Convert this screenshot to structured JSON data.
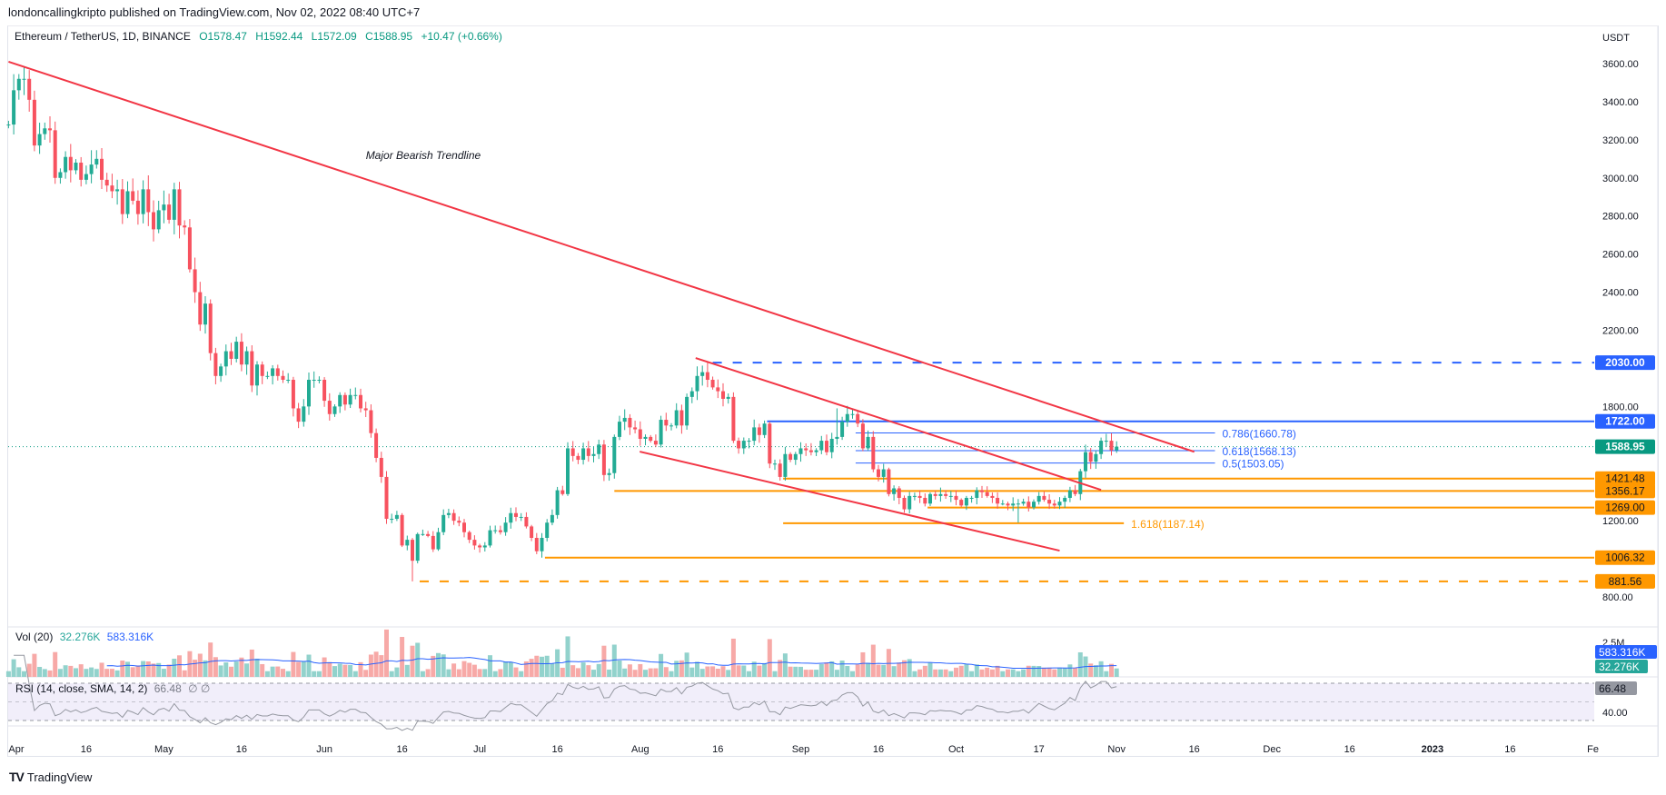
{
  "header": {
    "published": "londoncallingkripto published on TradingView.com, Nov 02, 2022 08:40 UTC+7",
    "symbol": "Ethereum / TetherUS, 1D, BINANCE",
    "open": "O1578.47",
    "high": "H1592.44",
    "low": "L1572.09",
    "close": "C1588.95",
    "change": "+10.47 (+0.66%)"
  },
  "volume_legend": {
    "label": "Vol (20)",
    "value": "32.276K",
    "ma": "583.316K"
  },
  "rsi_legend": {
    "label": "RSI (14, close, SMA, 14, 2)",
    "value": "66.48",
    "extra": "∅ ∅"
  },
  "footer": {
    "logo": "TV",
    "brand": "TradingView"
  },
  "colors": {
    "up": "#22ab94",
    "down": "#f7525f",
    "trend": "#f23645",
    "blue": "#2962ff",
    "orange": "#ff9800",
    "last": "#089981"
  },
  "chart_data": {
    "type": "candlestick",
    "title": "Ethereum / TetherUS, 1D, BINANCE",
    "currency": "USDT",
    "start_date": "2022-04-01",
    "ylim": [
      740,
      3700
    ],
    "price_ticks": [
      "3600.00",
      "3400.00",
      "3200.00",
      "3000.00",
      "2800.00",
      "2600.00",
      "2400.00",
      "2200.00",
      "1800.00",
      "1200.00",
      "800.00"
    ],
    "price_tick_values": [
      3600,
      3400,
      3200,
      3000,
      2800,
      2600,
      2400,
      2200,
      1800,
      1200,
      800
    ],
    "time_ticks": [
      {
        "label": "Apr",
        "day": 0
      },
      {
        "label": "16",
        "day": 15
      },
      {
        "label": "May",
        "day": 30
      },
      {
        "label": "16",
        "day": 45
      },
      {
        "label": "Jun",
        "day": 61
      },
      {
        "label": "16",
        "day": 76
      },
      {
        "label": "Jul",
        "day": 91
      },
      {
        "label": "16",
        "day": 106
      },
      {
        "label": "Aug",
        "day": 122
      },
      {
        "label": "16",
        "day": 137
      },
      {
        "label": "Sep",
        "day": 153
      },
      {
        "label": "16",
        "day": 168
      },
      {
        "label": "Oct",
        "day": 183
      },
      {
        "label": "17",
        "day": 199
      },
      {
        "label": "Nov",
        "day": 214
      },
      {
        "label": "16",
        "day": 229
      },
      {
        "label": "Dec",
        "day": 244
      },
      {
        "label": "16",
        "day": 259
      },
      {
        "label": "2023",
        "day": 275
      },
      {
        "label": "16",
        "day": 290
      },
      {
        "label": "Fe",
        "day": 306
      }
    ],
    "closes": [
      3280,
      3460,
      3520,
      3520,
      3410,
      3170,
      3230,
      3260,
      3250,
      3000,
      3030,
      3110,
      3040,
      3080,
      2990,
      3020,
      3070,
      3100,
      2990,
      2960,
      2930,
      2940,
      2810,
      2930,
      2880,
      2810,
      2940,
      2820,
      2730,
      2830,
      2860,
      2780,
      2940,
      2750,
      2740,
      2520,
      2400,
      2230,
      2340,
      2080,
      1960,
      2010,
      2090,
      2050,
      2140,
      2020,
      2090,
      1910,
      2020,
      1960,
      1960,
      2000,
      1960,
      1940,
      1940,
      1790,
      1720,
      1800,
      1940,
      1940,
      1940,
      1830,
      1760,
      1800,
      1860,
      1810,
      1860,
      1860,
      1790,
      1780,
      1660,
      1530,
      1430,
      1210,
      1210,
      1230,
      1070,
      1100,
      990,
      1130,
      1130,
      1120,
      1050,
      1140,
      1230,
      1240,
      1200,
      1190,
      1140,
      1100,
      1070,
      1060,
      1070,
      1150,
      1150,
      1140,
      1190,
      1240,
      1220,
      1220,
      1170,
      1110,
      1040,
      1110,
      1190,
      1230,
      1360,
      1340,
      1580,
      1540,
      1520,
      1580,
      1540,
      1550,
      1600,
      1440,
      1450,
      1640,
      1720,
      1740,
      1690,
      1680,
      1630,
      1640,
      1620,
      1600,
      1730,
      1700,
      1700,
      1780,
      1700,
      1850,
      1880,
      1960,
      1980,
      1940,
      1900,
      1880,
      1840,
      1850,
      1620,
      1580,
      1620,
      1620,
      1690,
      1650,
      1710,
      1500,
      1500,
      1430,
      1550,
      1520,
      1550,
      1580,
      1570,
      1560,
      1570,
      1620,
      1560,
      1630,
      1640,
      1720,
      1760,
      1760,
      1710,
      1580,
      1640,
      1470,
      1430,
      1470,
      1340,
      1370,
      1320,
      1260,
      1330,
      1330,
      1320,
      1290,
      1340,
      1330,
      1340,
      1330,
      1330,
      1310,
      1280,
      1320,
      1320,
      1360,
      1350,
      1330,
      1320,
      1290,
      1290,
      1280,
      1290,
      1290,
      1300,
      1270,
      1300,
      1330,
      1310,
      1290,
      1280,
      1300,
      1320,
      1360,
      1340,
      1460,
      1560,
      1510,
      1550,
      1620,
      1620,
      1570,
      1589
    ],
    "first_open": 3280,
    "wick_extremes": [
      {
        "day": 3,
        "high": 3580
      },
      {
        "day": 78,
        "low": 881.56
      },
      {
        "day": 103,
        "low": 1006.32
      },
      {
        "day": 135,
        "high": 2030
      },
      {
        "day": 195,
        "low": 1190
      },
      {
        "day": 160,
        "high": 1790
      },
      {
        "day": 213,
        "high": 1660
      }
    ],
    "last_price": "1588.95",
    "horizontal_levels": [
      {
        "price": 2030,
        "label": "2030.00",
        "color": "blue",
        "style": "dashed",
        "from_day": 136
      },
      {
        "price": 1722,
        "label": "1722.00",
        "color": "blue",
        "style": "solid",
        "from_day": 146.5
      },
      {
        "price": 1421.48,
        "label": "1421.48",
        "color": "orange",
        "style": "solid",
        "from_day": 149.6
      },
      {
        "price": 1356.17,
        "label": "1356.17",
        "color": "orange",
        "style": "solid",
        "from_day": 117
      },
      {
        "price": 1269,
        "label": "1269.00",
        "color": "orange",
        "style": "solid",
        "from_day": 177.5
      },
      {
        "price": 1006.32,
        "label": "1006.32",
        "color": "orange",
        "style": "solid",
        "from_day": 103.6
      },
      {
        "price": 881.56,
        "label": "881.56",
        "color": "orange",
        "style": "dashed",
        "from_day": 79.4
      }
    ],
    "fib_levels": [
      {
        "price": 1660.78,
        "label": "0.786(1660.78)",
        "from_day": 163.6,
        "to_day": 233,
        "color": "blue"
      },
      {
        "price": 1568.13,
        "label": "0.618(1568.13)",
        "from_day": 163.6,
        "to_day": 233,
        "color": "blue"
      },
      {
        "price": 1503.05,
        "label": "0.5(1503.05)",
        "from_day": 163.6,
        "to_day": 233,
        "color": "blue"
      },
      {
        "price": 1187.14,
        "label": "1.618(1187.14)",
        "from_day": 149.6,
        "to_day": 215.4,
        "color": "orange"
      }
    ],
    "trendlines": [
      {
        "name": "major-bearish-trendline",
        "from": [
          0,
          3610
        ],
        "to": [
          229,
          1562
        ]
      },
      {
        "name": "channel-upper-line",
        "from": [
          132.7,
          2054
        ],
        "to": [
          211,
          1362
        ]
      },
      {
        "name": "channel-lower-line",
        "from": [
          121.9,
          1563
        ],
        "to": [
          203,
          1043
        ]
      }
    ],
    "annotation": {
      "text": "Major Bearish Trendline",
      "day": 69,
      "price": 3100
    },
    "volume": {
      "axis_label": "2.5M",
      "last": "32.276K",
      "ma": "583.316K"
    },
    "rsi": {
      "period": 14,
      "upper": 70,
      "lower": 30,
      "axis_label": "40.00",
      "last": "66.48"
    }
  }
}
